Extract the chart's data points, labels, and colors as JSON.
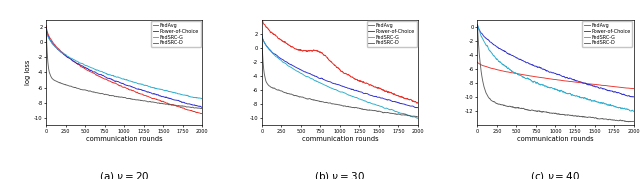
{
  "n_rounds": 2000,
  "legend_labels": [
    "FedAvg",
    "Power-of-Choice",
    "FedSRC-G",
    "FedSRC-D"
  ],
  "colors": [
    "#e8221a",
    "#2222cc",
    "#22aacc",
    "#555555"
  ],
  "subplot_titles": [
    "(a) $\\nu = 20$",
    "(b) $\\nu = 30$",
    "(c) $\\nu = 40$"
  ],
  "xlabel": "communication rounds",
  "ylabel": "log loss",
  "figsize": [
    6.4,
    1.79
  ],
  "dpi": 100,
  "ylims_a": [
    -11,
    3
  ],
  "ylims_b": [
    -11,
    4
  ],
  "ylims_c": [
    -14,
    1
  ],
  "yticks_a": [
    -10,
    -8,
    -6,
    -4,
    -2,
    0,
    2
  ],
  "yticks_b": [
    -10,
    -8,
    -6,
    -4,
    -2,
    0,
    2
  ],
  "yticks_c": [
    -12,
    -10,
    -8,
    -6,
    -4,
    -2,
    0
  ]
}
